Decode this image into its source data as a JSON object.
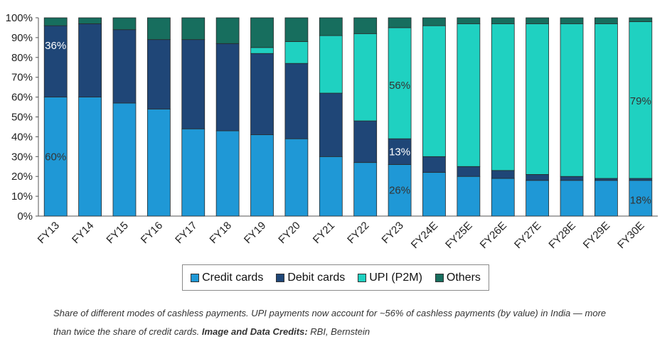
{
  "chart_data": {
    "type": "bar",
    "stacked": true,
    "categories": [
      "FY13",
      "FY14",
      "FY15",
      "FY16",
      "FY17",
      "FY18",
      "FY19",
      "FY20",
      "FY21",
      "FY22",
      "FY23",
      "FY24E",
      "FY25E",
      "FY26E",
      "FY27E",
      "FY28E",
      "FY29E",
      "FY30E"
    ],
    "series": [
      {
        "name": "Credit cards",
        "color": "#1f98d6",
        "values": [
          60,
          60,
          57,
          54,
          44,
          43,
          41,
          39,
          30,
          27,
          26,
          22,
          20,
          19,
          18,
          18,
          18,
          18
        ]
      },
      {
        "name": "Debit cards",
        "color": "#1f4677",
        "values": [
          36,
          37,
          37,
          35,
          45,
          44,
          41,
          38,
          32,
          21,
          13,
          8,
          5,
          4,
          3,
          2,
          1,
          1
        ]
      },
      {
        "name": "UPI (P2M)",
        "color": "#1fd1c1",
        "values": [
          0,
          0,
          0,
          0,
          0,
          0,
          3,
          11,
          29,
          44,
          56,
          66,
          72,
          74,
          76,
          77,
          78,
          79
        ]
      },
      {
        "name": "Others",
        "color": "#176e5e",
        "values": [
          4,
          3,
          6,
          11,
          11,
          13,
          15,
          12,
          9,
          8,
          5,
          4,
          3,
          3,
          3,
          3,
          3,
          2
        ]
      }
    ],
    "ylim": [
      0,
      100
    ],
    "yticks": [
      "0%",
      "10%",
      "20%",
      "30%",
      "40%",
      "50%",
      "60%",
      "70%",
      "80%",
      "90%",
      "100%"
    ],
    "annotations": [
      {
        "category": "FY13",
        "y": 86,
        "text": "36%",
        "color": "#ffffff"
      },
      {
        "category": "FY13",
        "y": 30,
        "text": "60%",
        "color": "#333333"
      },
      {
        "category": "FY23",
        "y": 66,
        "text": "56%",
        "color": "#333333"
      },
      {
        "category": "FY23",
        "y": 32.5,
        "text": "13%",
        "color": "#ffffff"
      },
      {
        "category": "FY23",
        "y": 13,
        "text": "26%",
        "color": "#333333"
      },
      {
        "category": "FY30E",
        "y": 58,
        "text": "79%",
        "color": "#333333"
      },
      {
        "category": "FY30E",
        "y": 8,
        "text": "18%",
        "color": "#333333"
      }
    ],
    "legend_position": "bottom"
  },
  "caption": {
    "text": "Share of different modes of cashless payments. UPI payments now account for ~56% of cashless payments (by value) in India — more than twice the share of credit cards. ",
    "credit_label": "Image and Data Credits:",
    "credit_value": " RBI, Bernstein"
  }
}
